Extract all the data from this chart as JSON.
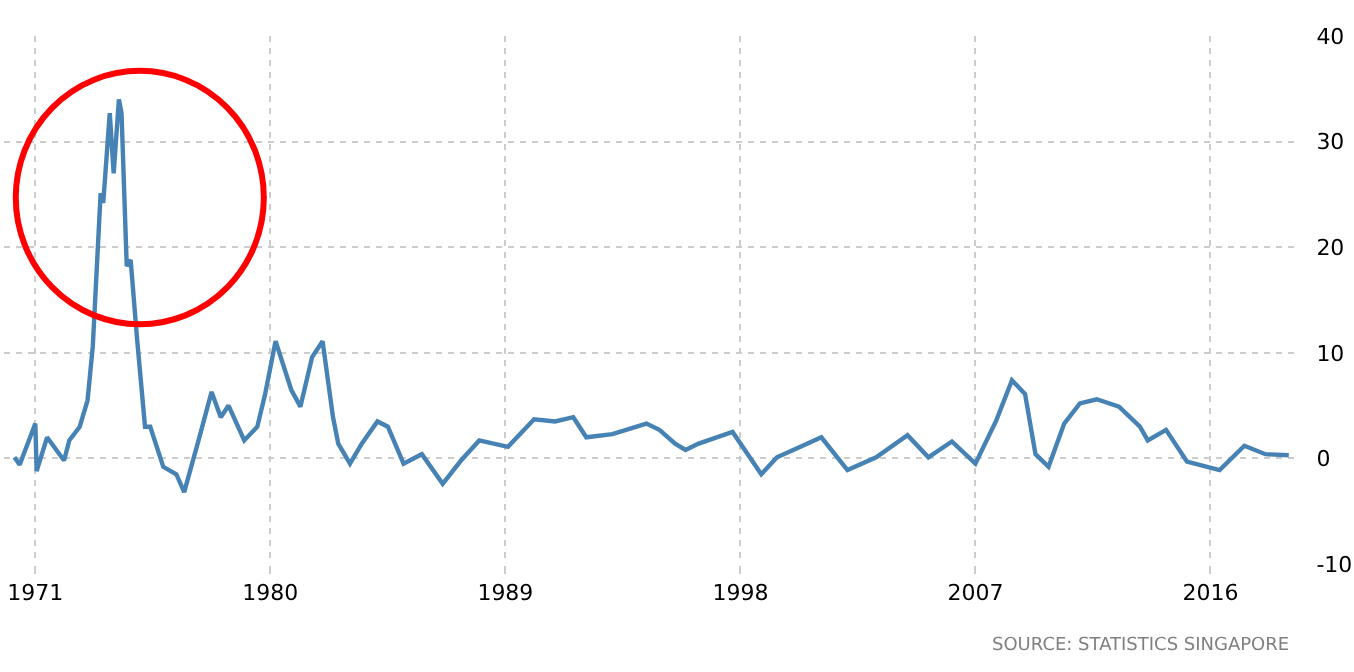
{
  "chart_data": {
    "type": "line",
    "annotations": [
      "SOURCE: STATISTICS SINGAPORE"
    ],
    "x": [
      1970.2,
      1970.4,
      1971.0,
      1971.05,
      1971.45,
      1972.1,
      1972.3,
      1972.7,
      1973.0,
      1973.2,
      1973.5,
      1973.6,
      1973.85,
      1974.0,
      1974.2,
      1974.3,
      1974.5,
      1974.65,
      1974.9,
      1975.2,
      1975.4,
      1975.9,
      1976.4,
      1976.7,
      1977.25,
      1977.75,
      1978.1,
      1978.4,
      1979.0,
      1979.5,
      1979.8,
      1980.2,
      1980.8,
      1981.15,
      1981.6,
      1982.0,
      1982.4,
      1982.6,
      1983.05,
      1983.5,
      1984.1,
      1984.5,
      1985.1,
      1985.8,
      1986.6,
      1987.3,
      1988.0,
      1989.1,
      1990.1,
      1990.9,
      1991.6,
      1992.1,
      1993.1,
      1994.4,
      1994.9,
      1995.5,
      1995.9,
      1996.4,
      1997.7,
      1998.8,
      1999.4,
      2000.3,
      2001.1,
      2002.1,
      2003.2,
      2004.4,
      2005.2,
      2006.1,
      2007.0,
      2007.8,
      2008.4,
      2008.9,
      2009.3,
      2009.8,
      2010.4,
      2011.0,
      2011.65,
      2012.5,
      2013.3,
      2013.6,
      2014.3,
      2015.1,
      2016.35,
      2017.3,
      2018.1,
      2019.0
    ],
    "series": [
      {
        "color": "#4682b4",
        "values": [
          0.1,
          -0.6,
          3.3,
          -1.2,
          2.0,
          -0.2,
          1.7,
          3.0,
          5.5,
          10.6,
          25.1,
          24.2,
          32.7,
          27.0,
          34.0,
          32.7,
          18.2,
          18.8,
          11.2,
          3.0,
          3.0,
          -0.8,
          -1.5,
          -3.2,
          1.7,
          6.3,
          3.9,
          5.0,
          1.7,
          3.0,
          6.1,
          11.1,
          6.5,
          4.9,
          9.6,
          11.1,
          3.9,
          1.4,
          -0.5,
          1.4,
          3.5,
          3.0,
          -0.5,
          0.4,
          -2.4,
          -0.2,
          1.7,
          1.1,
          3.7,
          3.5,
          3.9,
          2.0,
          2.3,
          3.3,
          2.7,
          1.4,
          0.8,
          1.4,
          2.5,
          -1.5,
          0.1,
          1.1,
          2.0,
          -1.1,
          0.1,
          2.2,
          0.1,
          1.6,
          -0.5,
          3.6,
          7.4,
          6.1,
          0.4,
          -0.8,
          3.3,
          5.2,
          5.6,
          4.9,
          3.0,
          1.7,
          2.7,
          -0.3,
          -1.1,
          1.2,
          0.4,
          0.3
        ]
      }
    ],
    "xlim": [
      1969.8,
      2019.2
    ],
    "ylim": [
      -10,
      40
    ],
    "xticks": [
      1971,
      1980,
      1989,
      1998,
      2007,
      2016
    ],
    "yticks": [
      -10,
      0,
      10,
      20,
      30,
      40
    ],
    "grid": true,
    "marker": "none",
    "line_style": "solid"
  }
}
